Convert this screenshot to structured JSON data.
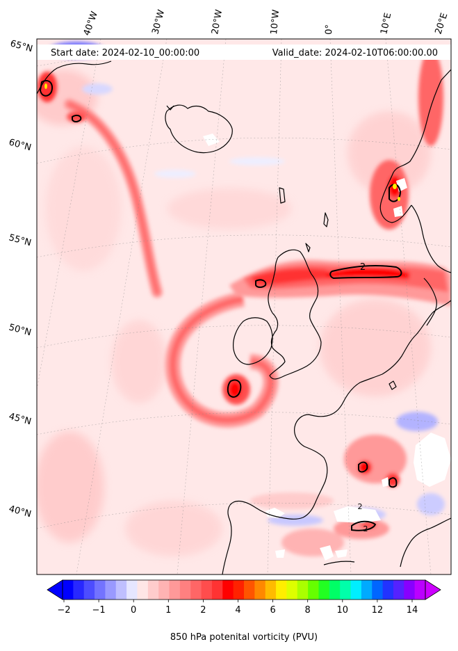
{
  "header": {
    "start_date": "Start date: 2024-02-10_00:00:00",
    "valid_date": "Valid_date: 2024-02-10T06:00:00.00"
  },
  "longitude_labels": [
    "40°W",
    "30°W",
    "20°W",
    "10°W",
    "0°",
    "10°E",
    "20°E"
  ],
  "latitude_labels": [
    "65°N",
    "60°N",
    "55°N",
    "50°N",
    "45°N",
    "40°N"
  ],
  "contour_labels": [
    "2",
    "2",
    "2"
  ],
  "colorbar": {
    "tick_labels": [
      "−2",
      "−1",
      "0",
      "1",
      "2",
      "4",
      "6",
      "8",
      "10",
      "12",
      "14"
    ],
    "label": "850 hPa potenital vorticity (PVU)",
    "colors": [
      "#0000ff",
      "#2828ff",
      "#4d4dff",
      "#7373ff",
      "#9999ff",
      "#bfbfff",
      "#e6e6ff",
      "#ffe6e6",
      "#ffcccc",
      "#ffb3b3",
      "#ff9999",
      "#ff8080",
      "#ff6666",
      "#ff4d4d",
      "#ff3333",
      "#ff0000",
      "#ff2200",
      "#ff5500",
      "#ff8800",
      "#ffbb00",
      "#ffee00",
      "#ddff00",
      "#aaff00",
      "#66ff00",
      "#22ff22",
      "#00ff66",
      "#00ffaa",
      "#00eeff",
      "#00aaff",
      "#0066ff",
      "#2233ff",
      "#5522ff",
      "#8800ff",
      "#bb00ff"
    ],
    "extend_low_color": "#0000ff",
    "extend_high_color": "#cc00ff"
  },
  "colors": {
    "background_field": "#ffe8e8",
    "coast": "#000000",
    "contour": "#000000"
  }
}
